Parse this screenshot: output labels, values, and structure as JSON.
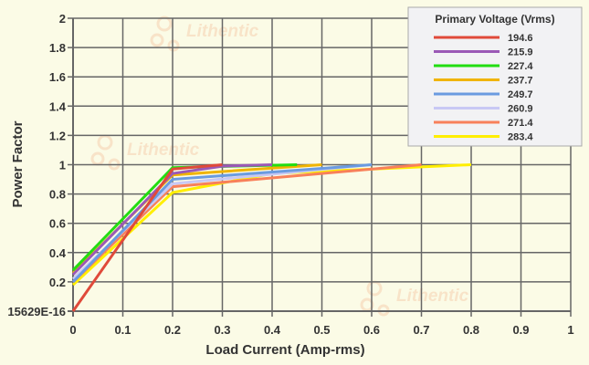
{
  "chart_data": {
    "type": "line",
    "xlabel": "Load Current (Amp-rms)",
    "ylabel": "Power Factor",
    "xlim": [
      0,
      1
    ],
    "ylim": [
      0,
      2
    ],
    "xticks": [
      "0",
      "0.1",
      "0.2",
      "0.3",
      "0.4",
      "0.5",
      "0.6",
      "0.7",
      "0.8",
      "0.9",
      "1"
    ],
    "yticks": [
      "15629E-16",
      "0.2",
      "0.4",
      "0.6",
      "0.8",
      "1",
      "1.2",
      "1.4",
      "1.6",
      "1.8",
      "2"
    ],
    "grid": true,
    "legend_title": "Primary Voltage (Vrms)",
    "legend_position": "top-right",
    "watermark": "Lithentic",
    "series": [
      {
        "name": "194.6",
        "color": "#e04a3a",
        "points": [
          [
            0,
            0
          ],
          [
            0.2,
            0.97
          ],
          [
            0.3,
            1.0
          ]
        ]
      },
      {
        "name": "215.9",
        "color": "#9b59b6",
        "points": [
          [
            0,
            0.25
          ],
          [
            0.2,
            0.94
          ],
          [
            0.3,
            0.99
          ],
          [
            0.4,
            1.0
          ]
        ]
      },
      {
        "name": "227.4",
        "color": "#22dd11",
        "points": [
          [
            0,
            0.28
          ],
          [
            0.2,
            0.98
          ],
          [
            0.45,
            1.0
          ]
        ]
      },
      {
        "name": "237.7",
        "color": "#f0b400",
        "points": [
          [
            0,
            0.26
          ],
          [
            0.2,
            0.93
          ],
          [
            0.5,
            1.0
          ]
        ]
      },
      {
        "name": "249.7",
        "color": "#6a9be0",
        "points": [
          [
            0,
            0.2
          ],
          [
            0.2,
            0.9
          ],
          [
            0.6,
            1.0
          ]
        ]
      },
      {
        "name": "260.9",
        "color": "#c8c8f4",
        "points": [
          [
            0,
            0.22
          ],
          [
            0.2,
            0.87
          ],
          [
            0.6,
            1.0
          ]
        ]
      },
      {
        "name": "271.4",
        "color": "#f8805a",
        "points": [
          [
            0,
            0.2
          ],
          [
            0.2,
            0.85
          ],
          [
            0.7,
            1.0
          ]
        ]
      },
      {
        "name": "283.4",
        "color": "#ffee00",
        "points": [
          [
            0,
            0.18
          ],
          [
            0.2,
            0.81
          ],
          [
            0.4,
            0.94
          ],
          [
            0.8,
            1.0
          ]
        ]
      }
    ]
  }
}
